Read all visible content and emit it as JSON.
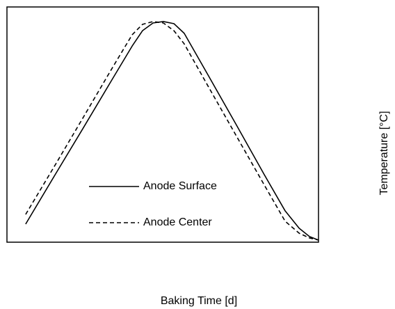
{
  "chart_data": {
    "type": "line",
    "xlabel": "Baking Time [d]",
    "ylabel": "Temperature [°C]",
    "xlim": [
      0,
      100
    ],
    "ylim": [
      0,
      100
    ],
    "legend": "lower center",
    "x": [
      6.0,
      15.6,
      24.6,
      33.5,
      40.2,
      43.5,
      46.9,
      50.2,
      53.6,
      56.9,
      64.7,
      73.7,
      82.6,
      89.3,
      93.8,
      97.1,
      100
    ],
    "series": [
      {
        "name": "Anode Surface",
        "color": "#000000",
        "line_style": "solid",
        "values": [
          7.7,
          29.0,
          48.8,
          68.6,
          83.4,
          89.9,
          93.2,
          93.8,
          92.9,
          88.8,
          70.7,
          49.7,
          28.7,
          13.3,
          5.9,
          2.4,
          0.9
        ]
      },
      {
        "name": "Anode Center",
        "color": "#000000",
        "line_style": "dashed",
        "values": [
          11.8,
          33.1,
          53.3,
          73.4,
          88.2,
          92.6,
          93.8,
          93.2,
          89.9,
          84.3,
          66.0,
          45.0,
          24.3,
          8.9,
          3.8,
          1.8,
          0.9
        ]
      }
    ]
  }
}
